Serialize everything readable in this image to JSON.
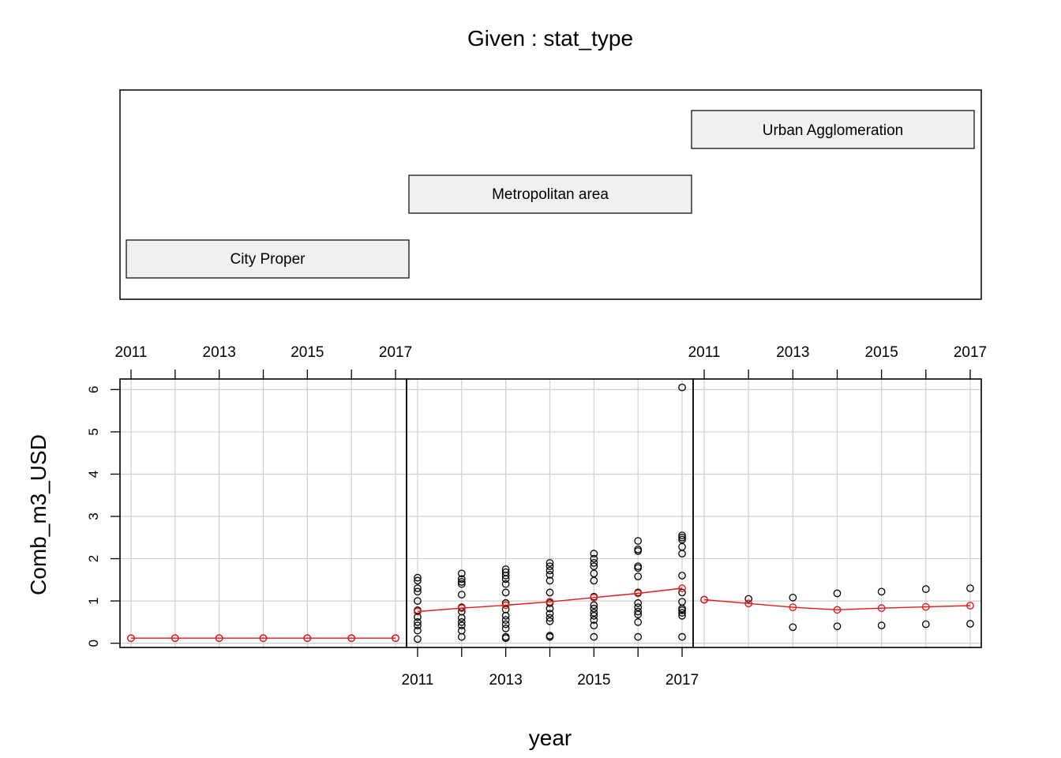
{
  "given_label": "Given : stat_type",
  "xlabel": "year",
  "ylabel": "Comb_m3_USD",
  "given_panels": [
    "City Proper",
    "Metropolitan area",
    "Urban Agglomeration"
  ],
  "chart_data": {
    "type": "scatter",
    "title": "",
    "xlabel": "year",
    "ylabel": "Comb_m3_USD",
    "xlim": [
      2010.75,
      2017.25
    ],
    "ylim": [
      -0.1,
      6.25
    ],
    "x_ticks": [
      2011,
      2012,
      2013,
      2014,
      2015,
      2016,
      2017
    ],
    "x_tick_labels": [
      "2011",
      "2013",
      "2015",
      "2017"
    ],
    "y_ticks": [
      0,
      1,
      2,
      3,
      4,
      5,
      6
    ],
    "grid": true,
    "colors": {
      "points": "#000000",
      "smooth": "#e41a1c",
      "grid": "#d0d0d0",
      "strip": "#f0f0f0"
    },
    "panels": [
      {
        "given": "City Proper",
        "points": [
          {
            "x": 2011,
            "y": 0.12
          },
          {
            "x": 2012,
            "y": 0.12
          },
          {
            "x": 2013,
            "y": 0.12
          },
          {
            "x": 2014,
            "y": 0.12
          },
          {
            "x": 2015,
            "y": 0.12
          },
          {
            "x": 2016,
            "y": 0.12
          },
          {
            "x": 2017,
            "y": 0.12
          }
        ],
        "smooth": [
          {
            "x": 2011,
            "y": 0.12
          },
          {
            "x": 2012,
            "y": 0.12
          },
          {
            "x": 2013,
            "y": 0.12
          },
          {
            "x": 2014,
            "y": 0.12
          },
          {
            "x": 2015,
            "y": 0.12
          },
          {
            "x": 2016,
            "y": 0.12
          },
          {
            "x": 2017,
            "y": 0.12
          }
        ]
      },
      {
        "given": "Metropolitan area",
        "points": [
          {
            "x": 2011,
            "y": 1.55
          },
          {
            "x": 2011,
            "y": 1.48
          },
          {
            "x": 2011,
            "y": 1.3
          },
          {
            "x": 2011,
            "y": 1.22
          },
          {
            "x": 2011,
            "y": 1.0
          },
          {
            "x": 2011,
            "y": 0.78
          },
          {
            "x": 2011,
            "y": 0.62
          },
          {
            "x": 2011,
            "y": 0.5
          },
          {
            "x": 2011,
            "y": 0.42
          },
          {
            "x": 2011,
            "y": 0.3
          },
          {
            "x": 2011,
            "y": 0.1
          },
          {
            "x": 2012,
            "y": 1.65
          },
          {
            "x": 2012,
            "y": 1.52
          },
          {
            "x": 2012,
            "y": 1.45
          },
          {
            "x": 2012,
            "y": 1.4
          },
          {
            "x": 2012,
            "y": 1.15
          },
          {
            "x": 2012,
            "y": 0.85
          },
          {
            "x": 2012,
            "y": 0.75
          },
          {
            "x": 2012,
            "y": 0.6
          },
          {
            "x": 2012,
            "y": 0.5
          },
          {
            "x": 2012,
            "y": 0.42
          },
          {
            "x": 2012,
            "y": 0.3
          },
          {
            "x": 2012,
            "y": 0.15
          },
          {
            "x": 2013,
            "y": 1.75
          },
          {
            "x": 2013,
            "y": 1.68
          },
          {
            "x": 2013,
            "y": 1.6
          },
          {
            "x": 2013,
            "y": 1.52
          },
          {
            "x": 2013,
            "y": 1.4
          },
          {
            "x": 2013,
            "y": 1.2
          },
          {
            "x": 2013,
            "y": 0.95
          },
          {
            "x": 2013,
            "y": 0.8
          },
          {
            "x": 2013,
            "y": 0.65
          },
          {
            "x": 2013,
            "y": 0.55
          },
          {
            "x": 2013,
            "y": 0.45
          },
          {
            "x": 2013,
            "y": 0.35
          },
          {
            "x": 2013,
            "y": 0.15
          },
          {
            "x": 2013,
            "y": 0.12
          },
          {
            "x": 2014,
            "y": 1.9
          },
          {
            "x": 2014,
            "y": 1.82
          },
          {
            "x": 2014,
            "y": 1.72
          },
          {
            "x": 2014,
            "y": 1.62
          },
          {
            "x": 2014,
            "y": 1.48
          },
          {
            "x": 2014,
            "y": 1.2
          },
          {
            "x": 2014,
            "y": 0.95
          },
          {
            "x": 2014,
            "y": 0.82
          },
          {
            "x": 2014,
            "y": 0.7
          },
          {
            "x": 2014,
            "y": 0.6
          },
          {
            "x": 2014,
            "y": 0.52
          },
          {
            "x": 2014,
            "y": 0.18
          },
          {
            "x": 2014,
            "y": 0.15
          },
          {
            "x": 2015,
            "y": 2.12
          },
          {
            "x": 2015,
            "y": 2.0
          },
          {
            "x": 2015,
            "y": 1.9
          },
          {
            "x": 2015,
            "y": 1.82
          },
          {
            "x": 2015,
            "y": 1.65
          },
          {
            "x": 2015,
            "y": 1.48
          },
          {
            "x": 2015,
            "y": 1.1
          },
          {
            "x": 2015,
            "y": 0.9
          },
          {
            "x": 2015,
            "y": 0.82
          },
          {
            "x": 2015,
            "y": 0.72
          },
          {
            "x": 2015,
            "y": 0.65
          },
          {
            "x": 2015,
            "y": 0.55
          },
          {
            "x": 2015,
            "y": 0.42
          },
          {
            "x": 2015,
            "y": 0.15
          },
          {
            "x": 2016,
            "y": 2.42
          },
          {
            "x": 2016,
            "y": 2.22
          },
          {
            "x": 2016,
            "y": 2.18
          },
          {
            "x": 2016,
            "y": 1.82
          },
          {
            "x": 2016,
            "y": 1.78
          },
          {
            "x": 2016,
            "y": 1.58
          },
          {
            "x": 2016,
            "y": 1.2
          },
          {
            "x": 2016,
            "y": 0.95
          },
          {
            "x": 2016,
            "y": 0.85
          },
          {
            "x": 2016,
            "y": 0.75
          },
          {
            "x": 2016,
            "y": 0.68
          },
          {
            "x": 2016,
            "y": 0.5
          },
          {
            "x": 2016,
            "y": 0.15
          },
          {
            "x": 2017,
            "y": 6.05
          },
          {
            "x": 2017,
            "y": 2.55
          },
          {
            "x": 2017,
            "y": 2.5
          },
          {
            "x": 2017,
            "y": 2.45
          },
          {
            "x": 2017,
            "y": 2.28
          },
          {
            "x": 2017,
            "y": 2.12
          },
          {
            "x": 2017,
            "y": 1.6
          },
          {
            "x": 2017,
            "y": 1.2
          },
          {
            "x": 2017,
            "y": 0.98
          },
          {
            "x": 2017,
            "y": 0.82
          },
          {
            "x": 2017,
            "y": 0.78
          },
          {
            "x": 2017,
            "y": 0.72
          },
          {
            "x": 2017,
            "y": 0.65
          },
          {
            "x": 2017,
            "y": 0.15
          }
        ],
        "smooth": [
          {
            "x": 2011,
            "y": 0.75
          },
          {
            "x": 2012,
            "y": 0.83
          },
          {
            "x": 2013,
            "y": 0.9
          },
          {
            "x": 2014,
            "y": 0.98
          },
          {
            "x": 2015,
            "y": 1.08
          },
          {
            "x": 2016,
            "y": 1.18
          },
          {
            "x": 2017,
            "y": 1.3
          }
        ]
      },
      {
        "given": "Urban Agglomeration",
        "points": [
          {
            "x": 2011,
            "y": 1.03
          },
          {
            "x": 2012,
            "y": 1.05
          },
          {
            "x": 2013,
            "y": 1.08
          },
          {
            "x": 2013,
            "y": 0.38
          },
          {
            "x": 2014,
            "y": 1.18
          },
          {
            "x": 2014,
            "y": 0.4
          },
          {
            "x": 2015,
            "y": 1.22
          },
          {
            "x": 2015,
            "y": 0.42
          },
          {
            "x": 2016,
            "y": 1.28
          },
          {
            "x": 2016,
            "y": 0.45
          },
          {
            "x": 2017,
            "y": 1.3
          },
          {
            "x": 2017,
            "y": 0.46
          }
        ],
        "smooth": [
          {
            "x": 2011,
            "y": 1.03
          },
          {
            "x": 2012,
            "y": 0.94
          },
          {
            "x": 2013,
            "y": 0.85
          },
          {
            "x": 2014,
            "y": 0.79
          },
          {
            "x": 2015,
            "y": 0.83
          },
          {
            "x": 2016,
            "y": 0.86
          },
          {
            "x": 2017,
            "y": 0.89
          }
        ]
      }
    ]
  }
}
